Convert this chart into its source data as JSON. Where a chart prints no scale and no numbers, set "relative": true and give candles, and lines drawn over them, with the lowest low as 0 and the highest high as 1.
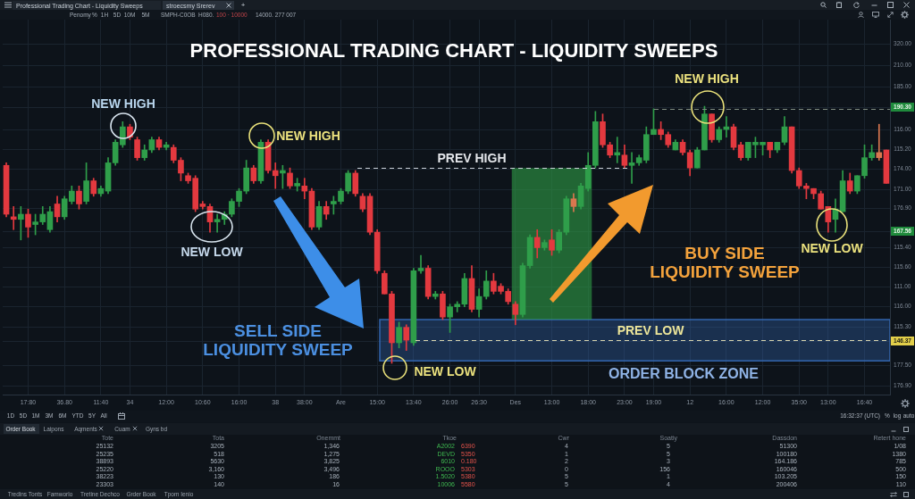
{
  "chart_data": [
    {
      "type": "candlestick",
      "title": "PROFESSIONAL TRADING CHART - LIQUIDITY SWEEPS",
      "categories": [
        null,
        null,
        null,
        "17:80",
        null,
        null,
        null,
        null,
        "36.80",
        null,
        null,
        null,
        null,
        "11:40",
        null,
        null,
        null,
        "34",
        null,
        null,
        null,
        null,
        "12:00",
        null,
        null,
        null,
        null,
        "10:60",
        null,
        null,
        null,
        null,
        "16:00",
        null,
        null,
        null,
        null,
        "38",
        null,
        null,
        null,
        "38:00",
        null,
        null,
        null,
        null,
        "Are",
        null,
        null,
        null,
        null,
        "15:00",
        null,
        null,
        null,
        null,
        "13:40",
        null,
        null,
        null,
        null,
        "26:00",
        null,
        null,
        null,
        "26:30",
        null,
        null,
        null,
        null,
        "Des",
        null,
        null,
        null,
        null,
        "13:00",
        null,
        null,
        null,
        null,
        "18:00",
        null,
        null,
        null,
        null,
        "23:00",
        null,
        null,
        null,
        "19:00",
        null,
        null,
        null,
        null,
        "12",
        null,
        null,
        null,
        null,
        "16:00",
        null,
        null,
        null,
        null,
        "12:00",
        null,
        null,
        null,
        null,
        "35:00",
        null,
        null,
        null,
        "13:00",
        null,
        null,
        null,
        null,
        "16:40",
        null,
        null,
        null
      ],
      "ohlc": [
        [
          0.77,
          0.78,
          0.57,
          0.58
        ],
        [
          0.57,
          0.61,
          0.52,
          0.56
        ],
        [
          0.56,
          0.61,
          0.48,
          0.58
        ],
        [
          0.58,
          0.6,
          0.49,
          0.53
        ],
        [
          0.54,
          0.58,
          0.5,
          0.55
        ],
        [
          0.55,
          0.61,
          0.54,
          0.58
        ],
        [
          0.52,
          0.61,
          0.51,
          0.59
        ],
        [
          0.62,
          0.65,
          0.55,
          0.57
        ],
        [
          0.57,
          0.65,
          0.56,
          0.64
        ],
        [
          0.63,
          0.69,
          0.62,
          0.67
        ],
        [
          0.67,
          0.69,
          0.6,
          0.62
        ],
        [
          0.63,
          0.78,
          0.62,
          0.71
        ],
        [
          0.71,
          0.72,
          0.65,
          0.66
        ],
        [
          0.66,
          0.69,
          0.65,
          0.68
        ],
        [
          0.67,
          0.8,
          0.66,
          0.78
        ],
        [
          0.78,
          0.87,
          0.77,
          0.86
        ],
        [
          0.85,
          0.94,
          0.84,
          0.92
        ],
        [
          0.92,
          0.93,
          0.87,
          0.88
        ],
        [
          0.87,
          0.88,
          0.79,
          0.8
        ],
        [
          0.8,
          0.85,
          0.79,
          0.83
        ],
        [
          0.83,
          0.88,
          0.82,
          0.87
        ],
        [
          0.87,
          0.88,
          0.83,
          0.84
        ],
        [
          0.84,
          0.86,
          0.83,
          0.85
        ],
        [
          0.84,
          0.85,
          0.78,
          0.79
        ],
        [
          0.79,
          0.8,
          0.71,
          0.74
        ],
        [
          0.73,
          0.74,
          0.7,
          0.71
        ],
        [
          0.72,
          0.73,
          0.59,
          0.6
        ],
        [
          0.62,
          0.63,
          0.6,
          0.61
        ],
        [
          0.61,
          0.62,
          0.51,
          0.55
        ],
        [
          0.55,
          0.58,
          0.51,
          0.56
        ],
        [
          0.56,
          0.59,
          0.54,
          0.58
        ],
        [
          0.58,
          0.64,
          0.57,
          0.63
        ],
        [
          0.63,
          0.68,
          0.61,
          0.67
        ],
        [
          0.67,
          0.79,
          0.66,
          0.76
        ],
        [
          0.76,
          0.77,
          0.7,
          0.71
        ],
        [
          0.71,
          0.87,
          0.7,
          0.86
        ],
        [
          0.86,
          0.87,
          0.74,
          0.75
        ],
        [
          0.75,
          0.78,
          0.68,
          0.73
        ],
        [
          0.74,
          0.77,
          0.68,
          0.75
        ],
        [
          0.74,
          0.76,
          0.68,
          0.69
        ],
        [
          0.69,
          0.72,
          0.67,
          0.7
        ],
        [
          0.69,
          0.72,
          0.64,
          0.67
        ],
        [
          0.67,
          0.68,
          0.52,
          0.53
        ],
        [
          0.53,
          0.63,
          0.52,
          0.61
        ],
        [
          0.61,
          0.63,
          0.56,
          0.58
        ],
        [
          0.62,
          0.65,
          0.58,
          0.63
        ],
        [
          0.63,
          0.68,
          0.62,
          0.67
        ],
        [
          0.67,
          0.75,
          0.66,
          0.74
        ],
        [
          0.74,
          0.75,
          0.65,
          0.66
        ],
        [
          0.65,
          0.66,
          0.59,
          0.6
        ],
        [
          0.65,
          0.66,
          0.5,
          0.51
        ],
        [
          0.51,
          0.52,
          0.35,
          0.36
        ],
        [
          0.35,
          0.36,
          0.27,
          0.27
        ],
        [
          0.27,
          0.28,
          0,
          0.08
        ],
        [
          0.08,
          0.16,
          0.06,
          0.14
        ],
        [
          0.14,
          0.15,
          0.05,
          0.09
        ],
        [
          0.08,
          0.37,
          0.07,
          0.36
        ],
        [
          0.36,
          0.42,
          0.35,
          0.37
        ],
        [
          0.37,
          0.38,
          0.25,
          0.26
        ],
        [
          0.26,
          0.28,
          0.25,
          0.27
        ],
        [
          0.27,
          0.28,
          0.17,
          0.18
        ],
        [
          0.18,
          0.23,
          0.12,
          0.22
        ],
        [
          0.22,
          0.24,
          0.2,
          0.23
        ],
        [
          0.23,
          0.35,
          0.22,
          0.33
        ],
        [
          0.33,
          0.38,
          0.2,
          0.21
        ],
        [
          0.21,
          0.29,
          0.18,
          0.26
        ],
        [
          0.26,
          0.36,
          0.25,
          0.32
        ],
        [
          0.32,
          0.35,
          0.27,
          0.28
        ],
        [
          0.3,
          0.31,
          0.27,
          0.28
        ],
        [
          0.28,
          0.29,
          0.23,
          0.24
        ],
        [
          0.23,
          0.24,
          0.15,
          0.19
        ],
        [
          0.19,
          0.39,
          0.18,
          0.38
        ],
        [
          0.38,
          0.5,
          0.37,
          0.49
        ],
        [
          0.49,
          0.52,
          0.41,
          0.45
        ],
        [
          0.45,
          0.48,
          0.44,
          0.47
        ],
        [
          0.48,
          0.52,
          0.42,
          0.44
        ],
        [
          0.44,
          0.52,
          0.43,
          0.51
        ],
        [
          0.51,
          0.65,
          0.5,
          0.64
        ],
        [
          0.64,
          0.66,
          0.59,
          0.61
        ],
        [
          0.61,
          0.7,
          0.6,
          0.69
        ],
        [
          0.68,
          0.82,
          0.67,
          0.77
        ],
        [
          0.77,
          0.98,
          0.76,
          0.94
        ],
        [
          0.94,
          0.97,
          0.84,
          0.85
        ],
        [
          0.85,
          0.86,
          0.8,
          0.81
        ],
        [
          0.81,
          0.88,
          0.78,
          0.82
        ],
        [
          0.81,
          0.85,
          0.76,
          0.77
        ],
        [
          0.77,
          0.82,
          0.7,
          0.78
        ],
        [
          0.78,
          0.81,
          0.77,
          0.8
        ],
        [
          0.79,
          0.92,
          0.78,
          0.89
        ],
        [
          0.89,
          0.99,
          0.89,
          0.91
        ],
        [
          0.91,
          0.94,
          0.87,
          0.89
        ],
        [
          0.89,
          0.9,
          0.84,
          0.85
        ],
        [
          0.83,
          0.87,
          0.83,
          0.86
        ],
        [
          0.86,
          0.87,
          0.81,
          0.82
        ],
        [
          0.82,
          0.83,
          0.73,
          0.76
        ],
        [
          0.76,
          0.84,
          0.76,
          0.83
        ],
        [
          0.83,
          1,
          0.83,
          0.97
        ],
        [
          0.97,
          0.97,
          0.86,
          0.87
        ],
        [
          0.87,
          0.92,
          0.86,
          0.91
        ],
        [
          0.91,
          0.96,
          0.88,
          0.92
        ],
        [
          0.92,
          0.93,
          0.83,
          0.84
        ],
        [
          0.85,
          0.86,
          0.79,
          0.8
        ],
        [
          0.8,
          0.86,
          0.79,
          0.86
        ],
        [
          0.85,
          0.88,
          0.8,
          0.86
        ],
        [
          0.85,
          0.86,
          0.81,
          0.86
        ],
        [
          0.86,
          0.86,
          0.8,
          0.83
        ],
        [
          0.83,
          0.86,
          0.82,
          0.86
        ],
        [
          0.86,
          0.96,
          0.85,
          0.92
        ],
        [
          0.92,
          0.92,
          0.74,
          0.75
        ],
        [
          0.75,
          0.76,
          0.68,
          0.69
        ],
        [
          0.69,
          0.7,
          0.64,
          0.68
        ],
        [
          0.68,
          0.68,
          0.64,
          0.66
        ],
        [
          0.66,
          0.67,
          0.6,
          0.6
        ],
        [
          0.61,
          0.61,
          0.51,
          0.55
        ],
        [
          0.56,
          0.64,
          0.51,
          0.6
        ],
        [
          0.59,
          0.75,
          0.59,
          0.71
        ],
        [
          0.71,
          0.74,
          0.66,
          0.67
        ],
        [
          0.67,
          0.73,
          0.66,
          0.73
        ],
        [
          0.73,
          0.85,
          0.72,
          0.8
        ],
        [
          0.8,
          0.85,
          0.79,
          0.82
        ],
        [
          0.82,
          0.93,
          0.79,
          0.8
        ],
        [
          0.83,
          0.83,
          0.7,
          0.7
        ]
      ],
      "colors": [
        "#e3393f",
        "#e3393f",
        "#2f9e4a",
        "#e3393f",
        "#2f9e4a",
        "#2f9e4a",
        "#2f9e4a",
        "#e3393f",
        "#2f9e4a",
        "#2f9e4a",
        "#e3393f",
        "#2f9e4a",
        "#e3393f",
        "#2f9e4a",
        "#2f9e4a",
        "#2f9e4a",
        "#2f9e4a",
        "#e3393f",
        "#e3393f",
        "#2f9e4a",
        "#2f9e4a",
        "#e3393f",
        "#2f9e4a",
        "#e3393f",
        "#e3393f",
        "#e3393f",
        "#e3393f",
        "#e3393f",
        "#e3393f",
        "#2f9e4a",
        "#2f9e4a",
        "#2f9e4a",
        "#2f9e4a",
        "#2f9e4a",
        "#e3393f",
        "#2f9e4a",
        "#e3393f",
        "#e3393f",
        "#2f9e4a",
        "#e3393f",
        "#2f9e4a",
        "#e3393f",
        "#e3393f",
        "#2f9e4a",
        "#e3393f",
        "#2f9e4a",
        "#2f9e4a",
        "#2f9e4a",
        "#e3393f",
        "#e3393f",
        "#e3393f",
        "#e3393f",
        "#e3393f",
        "#e3393f",
        "#2f9e4a",
        "#e3393f",
        "#2f9e4a",
        "#2f9e4a",
        "#e3393f",
        "#2f9e4a",
        "#e3393f",
        "#2f9e4a",
        "#2f9e4a",
        "#2f9e4a",
        "#e3393f",
        "#2f9e4a",
        "#2f9e4a",
        "#e3393f",
        "#e3393f",
        "#e3393f",
        "#e3393f",
        "#2f9e4a",
        "#2f9e4a",
        "#e3393f",
        "#2f9e4a",
        "#e3393f",
        "#2f9e4a",
        "#2f9e4a",
        "#d9774f",
        "#2f9e4a",
        "#2f9e4a",
        "#2f9e4a",
        "#e3393f",
        "#e3393f",
        "#2f9e4a",
        "#e3393f",
        "#2f9e4a",
        "#2f9e4a",
        "#2f9e4a",
        "#2f9e4a",
        "#e3393f",
        "#e3393f",
        "#2f9e4a",
        "#e3393f",
        "#e3393f",
        "#2f9e4a",
        "#2f9e4a",
        "#e3393f",
        "#2f9e4a",
        "#2f9e4a",
        "#e3393f",
        "#e3393f",
        "#2f9e4a",
        "#2f9e4a",
        "#2f9e4a",
        "#e3393f",
        "#2f9e4a",
        "#2f9e4a",
        "#e3393f",
        "#e3393f",
        "#e3393f",
        "#e3393f",
        "#e3393f",
        "#e3393f",
        "#2f9e4a",
        "#2f9e4a",
        "#e3393f",
        "#2f9e4a",
        "#2f9e4a",
        "#2f9e4a",
        "#d9774f",
        "#e3393f"
      ],
      "relative": true,
      "grid": true,
      "ref_lines": [
        {
          "axis": "y",
          "value": 0.76,
          "label": "PREV HIGH",
          "color": "#c9ced6",
          "line_style": "dashed"
        },
        {
          "axis": "y",
          "value": 0.09,
          "label": "PREV LOW",
          "color": "#d9d6b0",
          "line_style": "dashed"
        },
        {
          "axis": "y",
          "value": 0.99,
          "color": "#7f8c80",
          "line_style": "dashed"
        }
      ],
      "bands": [
        {
          "axis": "y",
          "from": 0.01,
          "to": 0.17,
          "label": "ORDER BLOCK ZONE",
          "color": "#3569b5"
        },
        {
          "axis": "x",
          "from": "Des",
          "to": "18:00",
          "color": "#2f9a46"
        }
      ],
      "annotations": [
        "NEW HIGH",
        "NEW HIGH",
        "NEW LOW",
        "SELL SIDE LIQUIDITY SWEEP",
        "NEW LOW",
        "NEW HIGH",
        "BUY SIDE LIQUIDITY SWEEP",
        "NEW LOW",
        "320.00",
        "210.00",
        "185.00",
        "190.30",
        "116.00",
        "115.20",
        "174.00",
        "171.00",
        "176.90",
        "167.56",
        "115.40",
        "115.60",
        "111.00",
        "116.00",
        "115.30",
        "146.37",
        "177.50",
        "176.90"
      ]
    },
    {
      "type": "other",
      "annotations": [
        "Professional Trading Chart - Liquidity Sweeps",
        "stroecsmy Srerev",
        "+",
        "Penomy",
        "%",
        "1H",
        "5D",
        "10M",
        "5M",
        "SMPH-C0OB",
        "H080.",
        "100 · 10000",
        "14000. 277 007"
      ]
    },
    {
      "type": "other",
      "annotations": [
        "1D",
        "5D",
        "1M",
        "3M",
        "6M",
        "YTD",
        "5Y",
        "All",
        "16:32:37 (UTC)",
        "%",
        "log",
        "auto",
        "Order Book",
        "Laipons",
        "Aqments",
        "Cuam",
        "Gyns bd",
        "Tote",
        "Tota",
        "Onemmt",
        "Tkoe",
        "Cwr",
        "Soatiy",
        "Dassdon",
        "Retert hone",
        "25132",
        "3205",
        "1,346",
        "A2002",
        "6390",
        "4",
        "5",
        "51300",
        "1/08",
        "25235",
        "518",
        "1,275",
        "DEVD",
        "5350",
        "1",
        "5",
        "100180",
        "1380",
        "38893",
        "5630",
        "3,825",
        "6010",
        "0.180",
        "2",
        "3",
        "164.186",
        "785",
        "25220",
        "3,160",
        "3,496",
        "ROOO",
        "5303",
        "0",
        "156",
        "160046",
        "500",
        "38223",
        "130",
        "186",
        "1.5020",
        "5380",
        "5",
        "1",
        "103.205",
        "150",
        "23303",
        "140",
        "16",
        "10006",
        "5580",
        "5",
        "4",
        "200406",
        "110",
        "Tredins Tonts",
        "Famworlo",
        "Tretine Dechco",
        "Grder Book",
        "Tpom Ienio"
      ]
    }
  ]
}
